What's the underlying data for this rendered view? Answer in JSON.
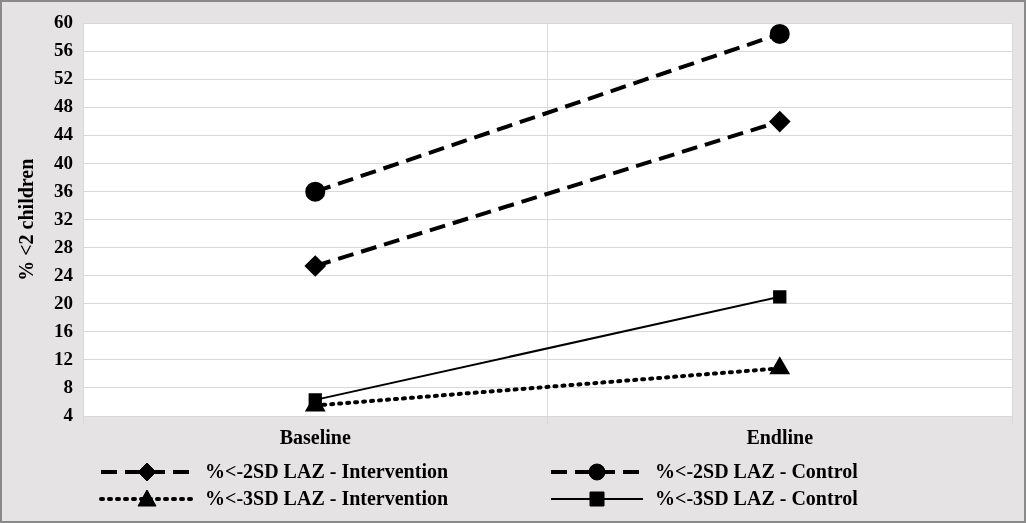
{
  "chart_data": {
    "type": "line",
    "ylabel": "% <2 children",
    "categories": [
      "Baseline",
      "Endline"
    ],
    "ylim": [
      4,
      60
    ],
    "yticks": [
      4,
      8,
      12,
      16,
      20,
      24,
      28,
      32,
      36,
      40,
      44,
      48,
      52,
      56,
      60
    ],
    "grid": true,
    "legend": "bottom",
    "series": [
      {
        "name": "%<-2SD LAZ - Intervention",
        "color": "#000000",
        "values": [
          25.4,
          46
        ],
        "marker": "diamond",
        "line_style": "dashed"
      },
      {
        "name": "%<-2SD LAZ - Control",
        "color": "#000000",
        "values": [
          36,
          58.5
        ],
        "marker": "circle",
        "line_style": "dashed"
      },
      {
        "name": "%<-3SD LAZ - Intervention",
        "color": "#000000",
        "values": [
          5.5,
          10.8
        ],
        "marker": "triangle",
        "line_style": "dotted"
      },
      {
        "name": "%<-3SD LAZ - Control",
        "color": "#000000",
        "values": [
          6.3,
          21
        ],
        "marker": "square",
        "line_style": "solid"
      }
    ]
  }
}
